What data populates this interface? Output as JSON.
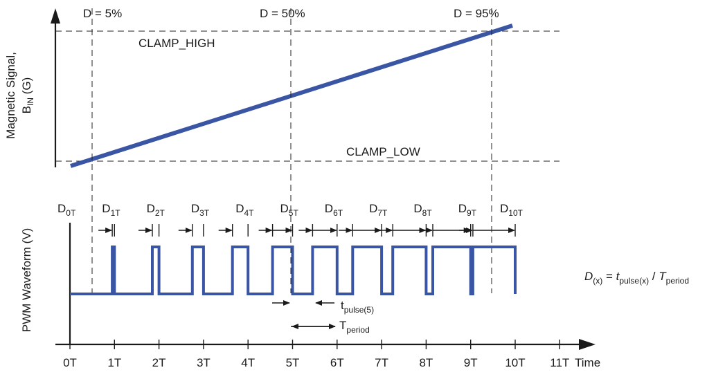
{
  "colors": {
    "waveform": "#3a55a4",
    "axis": "#1a1a1a",
    "guides": "#222222"
  },
  "top_plot": {
    "ylabel_line1": "Magnetic Signal,",
    "ylabel_base": "B",
    "ylabel_sub": "IN",
    "ylabel_unit": " (G)",
    "clamp_high": "CLAMP_HIGH",
    "clamp_low": "CLAMP_LOW",
    "duty_markers": [
      {
        "label": "D = 5%",
        "period": 0.5,
        "duty": 0.05
      },
      {
        "label": "D = 50%",
        "period": 5,
        "duty": 0.5
      },
      {
        "label": "D = 95%",
        "period": 9.5,
        "duty": 0.95
      }
    ]
  },
  "bottom_plot": {
    "ylabel": "PWM Waveform (V)",
    "xlabel": "Time",
    "x_ticks": [
      "0T",
      "1T",
      "2T",
      "3T",
      "4T",
      "5T",
      "6T",
      "7T",
      "8T",
      "9T",
      "10T",
      "11T"
    ],
    "duty_labels": [
      {
        "base": "D",
        "sub": "0T"
      },
      {
        "base": "D",
        "sub": "1T"
      },
      {
        "base": "D",
        "sub": "2T"
      },
      {
        "base": "D",
        "sub": "3T"
      },
      {
        "base": "D",
        "sub": "4T"
      },
      {
        "base": "D",
        "sub": "5T"
      },
      {
        "base": "D",
        "sub": "6T"
      },
      {
        "base": "D",
        "sub": "7T"
      },
      {
        "base": "D",
        "sub": "8T"
      },
      {
        "base": "D",
        "sub": "9T"
      },
      {
        "base": "D",
        "sub": "10T"
      }
    ],
    "duty_cycles": [
      0.05,
      0.15,
      0.25,
      0.35,
      0.45,
      0.55,
      0.65,
      0.75,
      0.85,
      0.95
    ],
    "t_pulse_base": "t",
    "t_pulse_sub": "pulse(5)",
    "t_period_base": "T",
    "t_period_sub": "period",
    "formula": {
      "lhs_base": "D",
      "lhs_sub": "(x)",
      "eq": " = ",
      "mid_base": "t",
      "mid_sub": "pulse(x)",
      "slash": " / ",
      "rhs_base": "T",
      "rhs_sub": "period"
    }
  }
}
